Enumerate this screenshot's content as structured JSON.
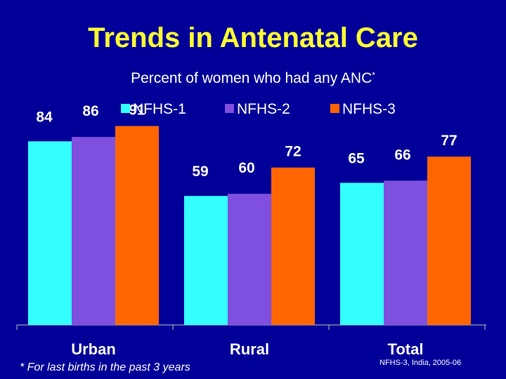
{
  "title": "Trends in Antenatal Care",
  "footnote": "* For last births in the past 3 years",
  "source": "NFHS-3, India, 2005-06",
  "colors": {
    "background": "#000099",
    "title": "#ffff33",
    "text": "#ffffff"
  },
  "chart_data": {
    "type": "bar",
    "title": "Percent of women who had any ANC",
    "title_marker": "*",
    "categories": [
      "Urban",
      "Rural",
      "Total"
    ],
    "series": [
      {
        "name": "NFHS-1",
        "color": "#33ffff",
        "values": [
          84,
          59,
          65
        ]
      },
      {
        "name": "NFHS-2",
        "color": "#7f4fdf",
        "values": [
          86,
          60,
          66
        ]
      },
      {
        "name": "NFHS-3",
        "color": "#ff6600",
        "values": [
          91,
          72,
          77
        ]
      }
    ],
    "ylim": [
      0,
      100
    ],
    "legend_position": "top",
    "grid": false,
    "xlabel": "",
    "ylabel": ""
  }
}
